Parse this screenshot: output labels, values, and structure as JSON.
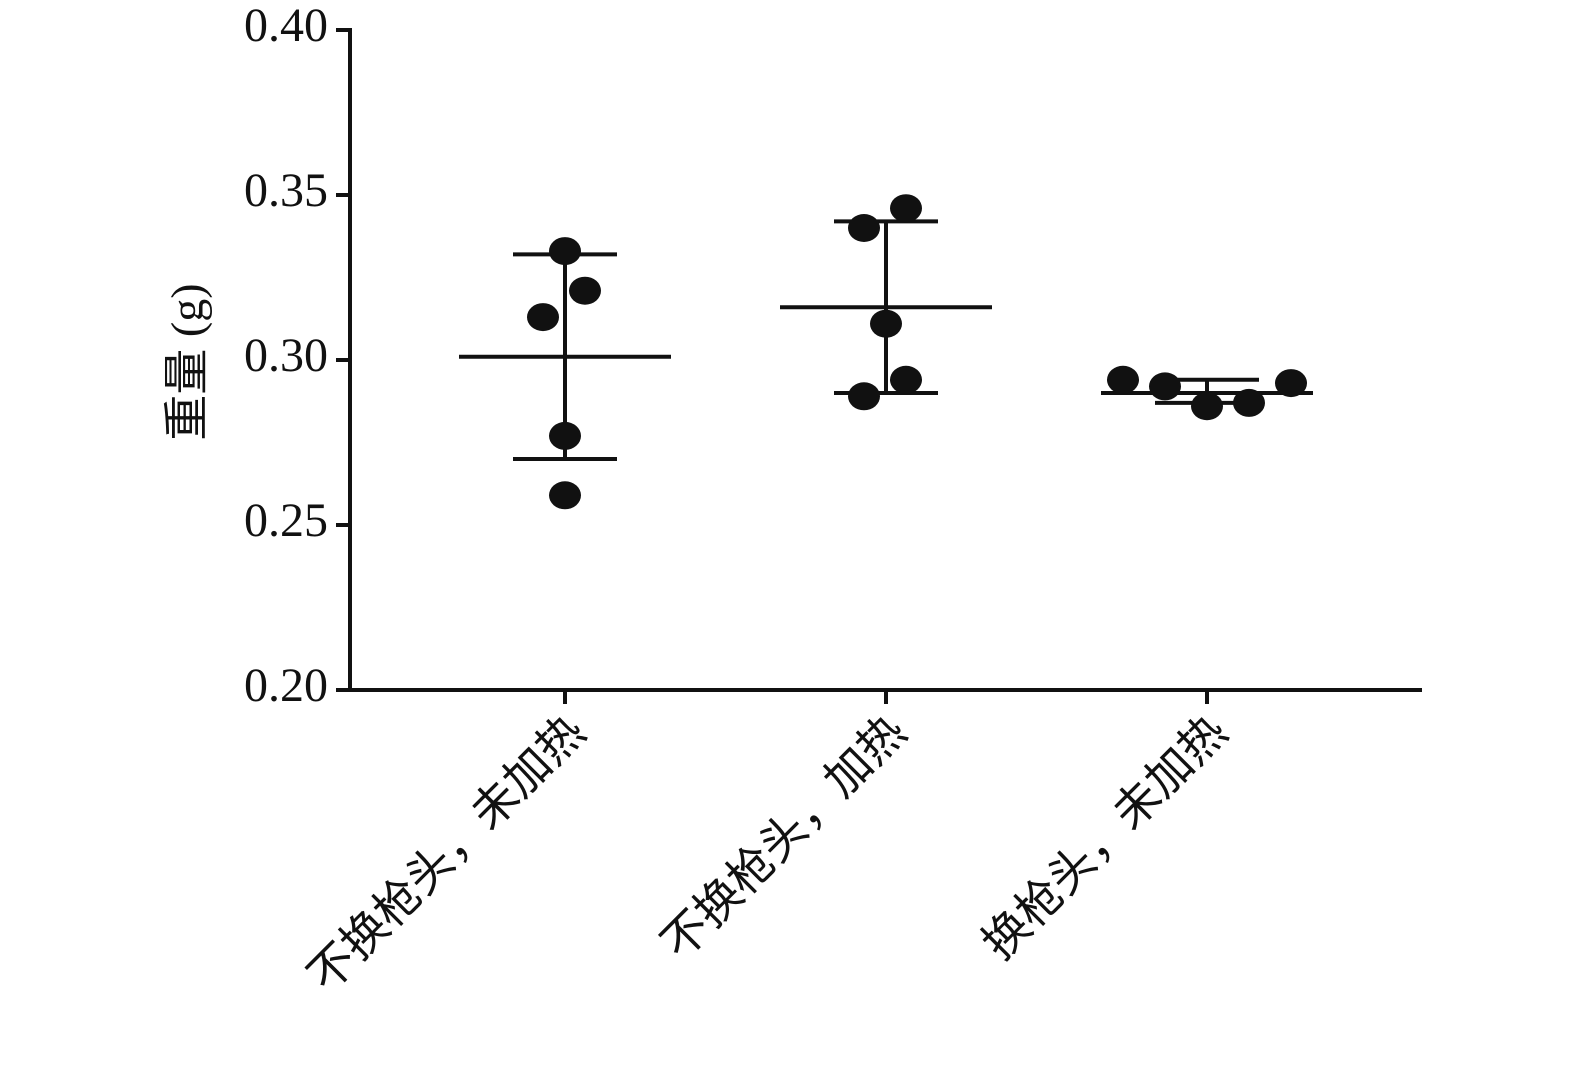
{
  "chart_data": {
    "type": "scatter",
    "title": "",
    "xlabel": "",
    "ylabel": "重量 (g)",
    "ylim": [
      0.2,
      0.4
    ],
    "yticks": [
      "0.20",
      "0.25",
      "0.30",
      "0.35",
      "0.40"
    ],
    "ytick_values": [
      0.2,
      0.25,
      0.3,
      0.35,
      0.4
    ],
    "grid": false,
    "legend": "none",
    "point_color": "#111111",
    "categories": [
      "不换枪头，未加热",
      "不换枪头，加热",
      "换枪头，未加热"
    ],
    "series": [
      {
        "points": [
          0.333,
          0.321,
          0.313,
          0.277,
          0.259
        ],
        "mean": 0.301,
        "upper": 0.332,
        "lower": 0.27
      },
      {
        "points": [
          0.346,
          0.34,
          0.311,
          0.294,
          0.289
        ],
        "mean": 0.316,
        "upper": 0.342,
        "lower": 0.29
      },
      {
        "points": [
          0.294,
          0.292,
          0.286,
          0.287,
          0.293
        ],
        "mean": 0.29,
        "upper": 0.294,
        "lower": 0.287
      }
    ]
  }
}
